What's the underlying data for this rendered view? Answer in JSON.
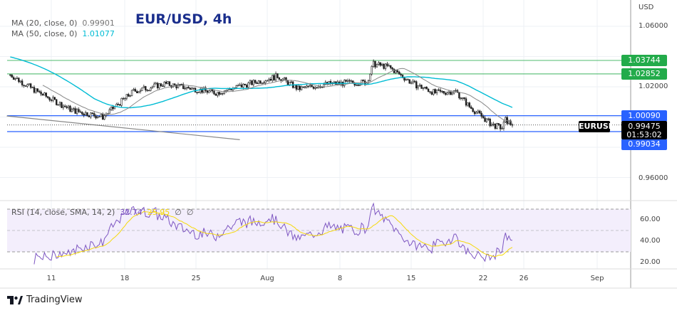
{
  "header": {
    "title": "EUR/USD, 4h",
    "currency": "USD"
  },
  "legend": {
    "ma20": {
      "label": "MA (20, close, 0)",
      "value": "0.99901",
      "color": "#888888"
    },
    "ma50": {
      "label": "MA (50, close, 0)",
      "value": "1.01077",
      "color": "#00bcd4"
    },
    "rsi": {
      "label": "RSI (14, close, SMA, 14, 2)",
      "value": "32.74",
      "sma_value": "25.95",
      "extra1": "∅",
      "extra2": "∅",
      "color": "#7e57c2",
      "sma_color": "#f5d90a"
    }
  },
  "price_axis": {
    "ticks": [
      "1.06000",
      "1.02000",
      "0.96000"
    ]
  },
  "rsi_axis": {
    "ticks": [
      "60.00",
      "40.00",
      "20.00"
    ]
  },
  "time_axis": {
    "ticks": [
      "11",
      "18",
      "25",
      "Aug",
      "8",
      "15",
      "22",
      "26",
      "Sep"
    ]
  },
  "levels": [
    {
      "price": 1.03744,
      "label": "1.03744",
      "color": "#22ab4a"
    },
    {
      "price": 1.02852,
      "label": "1.02852",
      "color": "#22ab4a"
    },
    {
      "price": 1.0009,
      "label": "1.00090",
      "color": "#2962ff"
    },
    {
      "price": 0.99034,
      "label": "0.99034",
      "color": "#2962ff"
    }
  ],
  "current": {
    "symbol": "EURUSD",
    "price": "0.99475",
    "countdown": "01:53:02"
  },
  "footer": {
    "brand": "TradingView"
  },
  "chart_data": {
    "type": "candlestick",
    "title": "EUR/USD, 4h",
    "ylabel": "USD",
    "ylim": [
      0.945,
      1.075
    ],
    "rsi_ylim": [
      12,
      78
    ],
    "rsi_bands": [
      70,
      50,
      30
    ],
    "close_keypoints": [
      {
        "date": "Jul 7 00:00",
        "close": 1.028
      },
      {
        "date": "Jul 9 12:00",
        "close": 1.0172
      },
      {
        "date": "Jul 13 00:00",
        "close": 1.0045
      },
      {
        "date": "Jul 16 00:00",
        "close": 1.0
      },
      {
        "date": "Jul 19 00:00",
        "close": 1.017
      },
      {
        "date": "Jul 22 00:00",
        "close": 1.022
      },
      {
        "date": "Jul 27 00:00",
        "close": 1.016
      },
      {
        "date": "Aug 2 00:00",
        "close": 1.027
      },
      {
        "date": "Aug 4 00:00",
        "close": 1.0186
      },
      {
        "date": "Aug 7 00:00",
        "close": 1.022
      },
      {
        "date": "Aug 10 16:00",
        "close": 1.023
      },
      {
        "date": "Aug 11 08:00",
        "close": 1.035
      },
      {
        "date": "Aug 12 20:00",
        "close": 1.033
      },
      {
        "date": "Aug 15 04:00",
        "close": 1.022
      },
      {
        "date": "Aug 17 08:00",
        "close": 1.016
      },
      {
        "date": "Aug 19 08:00",
        "close": 1.017
      },
      {
        "date": "Aug 20 16:00",
        "close": 1.0068
      },
      {
        "date": "Aug 22 20:00",
        "close": 0.995
      },
      {
        "date": "Aug 23 20:00",
        "close": 0.9927
      },
      {
        "date": "Aug 24 04:00",
        "close": 0.998
      },
      {
        "date": "Aug 24 20:00",
        "close": 0.99475
      }
    ],
    "trendline": [
      {
        "date": "Jul 6 16:00",
        "price": 1.0007
      },
      {
        "date": "Jul 29 08:00",
        "price": 0.985
      }
    ]
  }
}
